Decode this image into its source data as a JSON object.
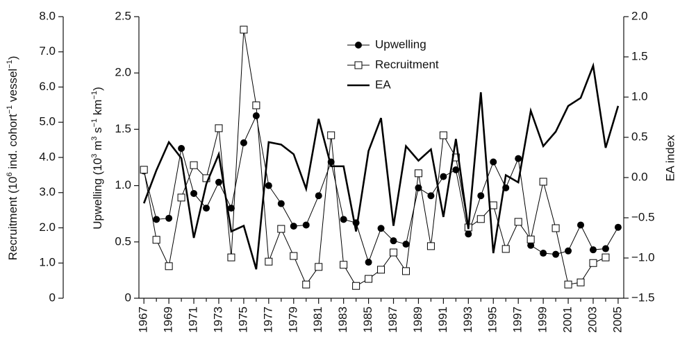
{
  "chart_data": {
    "type": "line",
    "y3_label": [
      "Recruitment (10",
      "6",
      " ind. cohort",
      "−1",
      " vessel",
      "−1",
      ")"
    ],
    "y_label": [
      "Upwelling (10",
      "3",
      " m",
      "3",
      " s",
      "−1",
      " km",
      "−1",
      ")"
    ],
    "y2_label": "EA index",
    "x": [
      1967,
      1968,
      1969,
      1970,
      1971,
      1972,
      1973,
      1974,
      1975,
      1976,
      1977,
      1978,
      1979,
      1980,
      1981,
      1982,
      1983,
      1984,
      1985,
      1986,
      1987,
      1988,
      1989,
      1990,
      1991,
      1992,
      1993,
      1994,
      1995,
      1996,
      1997,
      1998,
      1999,
      2000,
      2001,
      2002,
      2003,
      2004,
      2005
    ],
    "xlim": [
      1966.6,
      2005.45
    ],
    "xticks": [
      1967,
      1969,
      1971,
      1973,
      1975,
      1977,
      1979,
      1981,
      1983,
      1985,
      1987,
      1989,
      1991,
      1993,
      1995,
      1997,
      1999,
      2001,
      2003,
      2005
    ],
    "xminorticks": [
      1968,
      1970,
      1972,
      1974,
      1976,
      1978,
      1980,
      1982,
      1984,
      1986,
      1988,
      1990,
      1992,
      1994,
      1996,
      1998,
      2000,
      2002,
      2004
    ],
    "ylim": [
      0,
      2.5
    ],
    "yticks": [
      0,
      0.5,
      {
        "value": 1,
        "label": "1.0"
      },
      1.5,
      {
        "value": 2,
        "label": "2.0"
      },
      2.5
    ],
    "y2lim": [
      -1.5,
      2.0
    ],
    "y2ticks": [
      {
        "value": -1.5,
        "label": "−1.5"
      },
      {
        "value": -1,
        "label": "−1.0"
      },
      {
        "value": -0.5,
        "label": "−0.5"
      },
      {
        "value": 0,
        "label": "0.0"
      },
      0.5,
      {
        "value": 1,
        "label": "1.0"
      },
      1.5,
      {
        "value": 2,
        "label": "2.0"
      }
    ],
    "y3lim": [
      0,
      8
    ],
    "y3ticks": [
      0,
      {
        "value": 1,
        "label": "1.0"
      },
      {
        "value": 2,
        "label": "2.0"
      },
      {
        "value": 3,
        "label": "3.0"
      },
      {
        "value": 4,
        "label": "4.0"
      },
      {
        "value": 5,
        "label": "5.0"
      },
      {
        "value": 6,
        "label": "6.0"
      },
      {
        "value": 7,
        "label": "7.0"
      },
      {
        "value": 8,
        "label": "8.0"
      }
    ],
    "series": [
      {
        "name": "Upwelling",
        "color": "#000000",
        "marker": "circle",
        "axis": "y",
        "values": [
          1.13,
          0.7,
          0.71,
          1.33,
          0.93,
          0.8,
          1.03,
          0.8,
          1.38,
          1.62,
          1.0,
          0.84,
          0.64,
          0.65,
          0.91,
          1.21,
          0.7,
          0.67,
          0.32,
          0.62,
          0.51,
          0.48,
          0.98,
          0.91,
          1.08,
          1.14,
          0.57,
          0.91,
          1.21,
          0.98,
          1.24,
          0.47,
          0.4,
          0.39,
          0.42,
          0.65,
          0.43,
          0.44,
          0.63
        ]
      },
      {
        "name": "Recruitment",
        "color": "#000000",
        "marker": "square",
        "axis": "y3",
        "values": [
          3.65,
          1.66,
          0.91,
          2.86,
          3.78,
          3.41,
          4.83,
          1.16,
          7.63,
          5.48,
          1.04,
          1.97,
          1.2,
          0.39,
          0.89,
          4.63,
          0.95,
          0.35,
          0.55,
          0.81,
          1.3,
          0.77,
          3.55,
          1.48,
          4.63,
          4.0,
          2.01,
          2.25,
          2.64,
          1.4,
          2.17,
          1.67,
          3.31,
          1.99,
          0.39,
          0.45,
          1.0,
          1.16,
          null
        ]
      },
      {
        "name": "EA",
        "color": "#000000",
        "marker": "none",
        "axis": "y2",
        "values": [
          -0.32,
          0.09,
          0.44,
          0.24,
          -0.75,
          -0.08,
          0.29,
          -0.67,
          -0.6,
          -1.14,
          0.44,
          0.41,
          0.29,
          -0.14,
          0.73,
          0.14,
          0.14,
          -0.67,
          0.33,
          0.74,
          -0.6,
          0.39,
          0.21,
          0.35,
          -0.49,
          0.48,
          -0.64,
          1.06,
          -0.94,
          0.03,
          -0.06,
          0.83,
          0.39,
          0.57,
          0.89,
          0.99,
          1.39,
          0.37,
          0.89
        ]
      }
    ]
  }
}
